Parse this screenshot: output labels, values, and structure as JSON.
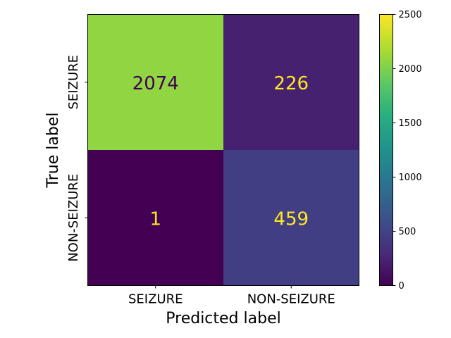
{
  "chart_data": {
    "type": "heatmap",
    "title": "",
    "xlabel": "Predicted label",
    "ylabel": "True label",
    "x_categories": [
      "SEIZURE",
      "NON-SEIZURE"
    ],
    "y_categories": [
      "SEIZURE",
      "NON-SEIZURE"
    ],
    "values": [
      [
        2074,
        226
      ],
      [
        1,
        459
      ]
    ],
    "colormap": "viridis",
    "colorbar": {
      "range": [
        0,
        2500
      ],
      "ticks": [
        0,
        500,
        1000,
        1500,
        2000,
        2500
      ]
    },
    "text_colors": {
      "light_cells": "#440154",
      "dark_cells": "#fde725"
    }
  }
}
